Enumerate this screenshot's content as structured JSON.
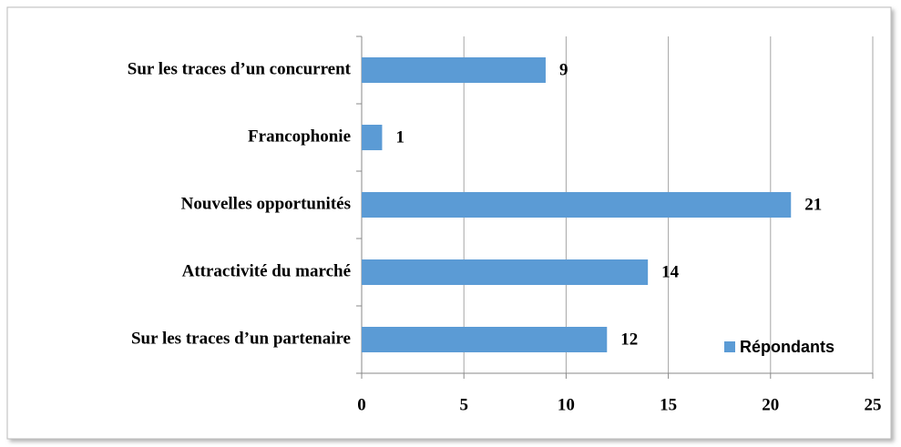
{
  "chart_data": {
    "type": "hbar",
    "categories": [
      "Sur les traces d’un concurrent",
      "Francophonie",
      "Nouvelles opportunités",
      "Attractivité du marché",
      "Sur les traces d’un partenaire"
    ],
    "series": [
      {
        "name": "Répondants",
        "color": "#5b9bd5",
        "values": [
          9,
          1,
          21,
          14,
          12
        ]
      }
    ],
    "xlim": [
      0,
      25
    ],
    "xticks": [
      0,
      5,
      10,
      15,
      20,
      25
    ],
    "grid": true,
    "legend": "lower right"
  }
}
